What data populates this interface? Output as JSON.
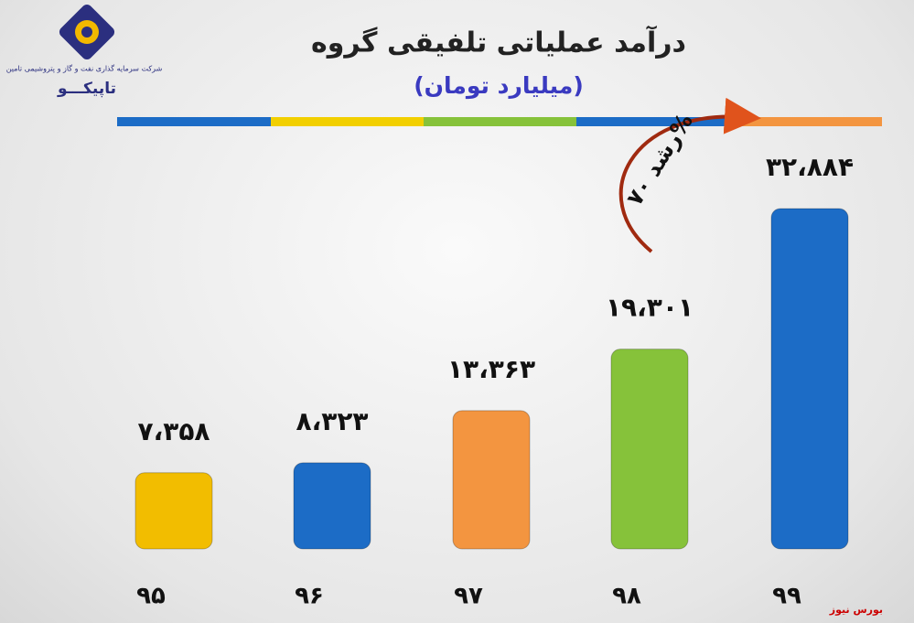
{
  "chart_data": {
    "type": "bar",
    "title": "درآمد عملیاتی تلفیقی گروه",
    "subtitle": "(میلیارد تومان)",
    "annotation": "رشد ۷۰%",
    "categories": [
      "۹۵",
      "۹۶",
      "۹۷",
      "۹۸",
      "۹۹"
    ],
    "values": [
      7358,
      8323,
      13363,
      19301,
      32884
    ],
    "value_labels": [
      "۷،۳۵۸",
      "۸،۳۲۳",
      "۱۳،۳۶۳",
      "۱۹،۳۰۱",
      "۳۲،۸۸۴"
    ],
    "colors": [
      "#f2bd00",
      "#1c6cc6",
      "#f39540",
      "#86c23a",
      "#1c6cc6"
    ]
  },
  "logo": {
    "company": "شرکت سرمایه گذاری نفت و گاز و پتروشیمی تامین",
    "name": "تاپیکـــو"
  },
  "watermark": "بورس نیوز"
}
